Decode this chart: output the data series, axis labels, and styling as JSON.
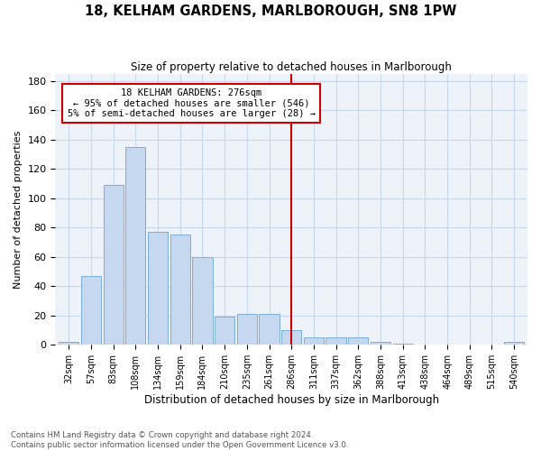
{
  "title": "18, KELHAM GARDENS, MARLBOROUGH, SN8 1PW",
  "subtitle": "Size of property relative to detached houses in Marlborough",
  "xlabel": "Distribution of detached houses by size in Marlborough",
  "ylabel": "Number of detached properties",
  "footnote1": "Contains HM Land Registry data © Crown copyright and database right 2024.",
  "footnote2": "Contains public sector information licensed under the Open Government Licence v3.0.",
  "bar_labels": [
    "32sqm",
    "57sqm",
    "83sqm",
    "108sqm",
    "134sqm",
    "159sqm",
    "184sqm",
    "210sqm",
    "235sqm",
    "261sqm",
    "286sqm",
    "311sqm",
    "337sqm",
    "362sqm",
    "388sqm",
    "413sqm",
    "438sqm",
    "464sqm",
    "489sqm",
    "515sqm",
    "540sqm"
  ],
  "bar_values": [
    2,
    47,
    109,
    135,
    77,
    75,
    60,
    19,
    21,
    21,
    10,
    5,
    5,
    5,
    2,
    1,
    0,
    0,
    0,
    0,
    2
  ],
  "bar_color": "#C5D8F0",
  "bar_edge_color": "#7BAFD4",
  "property_line_x": 10.0,
  "property_line_label": "18 KELHAM GARDENS: 276sqm",
  "pct_smaller": "95% of detached houses are smaller (546)",
  "pct_larger": "5% of semi-detached houses are larger (28)",
  "annotation_box_color": "#FFFFFF",
  "annotation_box_edge": "#CC0000",
  "vline_color": "#CC0000",
  "grid_color": "#C8D8EA",
  "bg_color": "#EEF3FA",
  "ylim": [
    0,
    185
  ],
  "yticks": [
    0,
    20,
    40,
    60,
    80,
    100,
    120,
    140,
    160,
    180
  ]
}
